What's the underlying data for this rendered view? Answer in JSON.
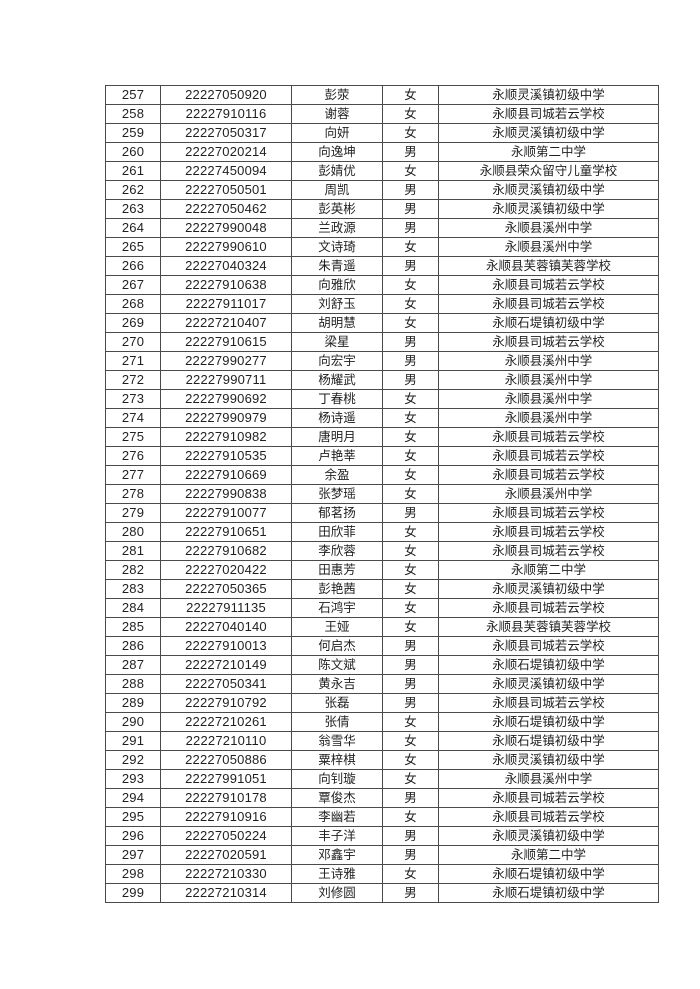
{
  "page": {
    "background": "#ffffff",
    "text_color": "#1f1f1f",
    "border_color": "#4a4a4a"
  },
  "table": {
    "columns": [
      {
        "key": "no",
        "cell_name": "cell-serial-number"
      },
      {
        "key": "exam_no",
        "cell_name": "cell-exam-number"
      },
      {
        "key": "name",
        "cell_name": "cell-student-name"
      },
      {
        "key": "gender",
        "cell_name": "cell-gender"
      },
      {
        "key": "school",
        "cell_name": "cell-school"
      }
    ],
    "rows": [
      {
        "no": "257",
        "exam_no": "22227050920",
        "name": "彭荥",
        "gender": "女",
        "school": "永顺灵溪镇初级中学"
      },
      {
        "no": "258",
        "exam_no": "22227910116",
        "name": "谢蓉",
        "gender": "女",
        "school": "永顺县司城若云学校"
      },
      {
        "no": "259",
        "exam_no": "22227050317",
        "name": "向妍",
        "gender": "女",
        "school": "永顺灵溪镇初级中学"
      },
      {
        "no": "260",
        "exam_no": "22227020214",
        "name": "向逸坤",
        "gender": "男",
        "school": "永顺第二中学"
      },
      {
        "no": "261",
        "exam_no": "22227450094",
        "name": "彭婧优",
        "gender": "女",
        "school": "永顺县荣众留守儿童学校"
      },
      {
        "no": "262",
        "exam_no": "22227050501",
        "name": "周凯",
        "gender": "男",
        "school": "永顺灵溪镇初级中学"
      },
      {
        "no": "263",
        "exam_no": "22227050462",
        "name": "彭英彬",
        "gender": "男",
        "school": "永顺灵溪镇初级中学"
      },
      {
        "no": "264",
        "exam_no": "22227990048",
        "name": "兰政源",
        "gender": "男",
        "school": "永顺县溪州中学"
      },
      {
        "no": "265",
        "exam_no": "22227990610",
        "name": "文诗琦",
        "gender": "女",
        "school": "永顺县溪州中学"
      },
      {
        "no": "266",
        "exam_no": "22227040324",
        "name": "朱青遥",
        "gender": "男",
        "school": "永顺县芙蓉镇芙蓉学校"
      },
      {
        "no": "267",
        "exam_no": "22227910638",
        "name": "向雅欣",
        "gender": "女",
        "school": "永顺县司城若云学校"
      },
      {
        "no": "268",
        "exam_no": "22227911017",
        "name": "刘舒玉",
        "gender": "女",
        "school": "永顺县司城若云学校"
      },
      {
        "no": "269",
        "exam_no": "22227210407",
        "name": "胡明慧",
        "gender": "女",
        "school": "永顺石堤镇初级中学"
      },
      {
        "no": "270",
        "exam_no": "22227910615",
        "name": "梁星",
        "gender": "男",
        "school": "永顺县司城若云学校"
      },
      {
        "no": "271",
        "exam_no": "22227990277",
        "name": "向宏宇",
        "gender": "男",
        "school": "永顺县溪州中学"
      },
      {
        "no": "272",
        "exam_no": "22227990711",
        "name": "杨耀武",
        "gender": "男",
        "school": "永顺县溪州中学"
      },
      {
        "no": "273",
        "exam_no": "22227990692",
        "name": "丁春桃",
        "gender": "女",
        "school": "永顺县溪州中学"
      },
      {
        "no": "274",
        "exam_no": "22227990979",
        "name": "杨诗遥",
        "gender": "女",
        "school": "永顺县溪州中学"
      },
      {
        "no": "275",
        "exam_no": "22227910982",
        "name": "唐明月",
        "gender": "女",
        "school": "永顺县司城若云学校"
      },
      {
        "no": "276",
        "exam_no": "22227910535",
        "name": "卢艳莘",
        "gender": "女",
        "school": "永顺县司城若云学校"
      },
      {
        "no": "277",
        "exam_no": "22227910669",
        "name": "余盈",
        "gender": "女",
        "school": "永顺县司城若云学校"
      },
      {
        "no": "278",
        "exam_no": "22227990838",
        "name": "张梦瑶",
        "gender": "女",
        "school": "永顺县溪州中学"
      },
      {
        "no": "279",
        "exam_no": "22227910077",
        "name": "郁茗扬",
        "gender": "男",
        "school": "永顺县司城若云学校"
      },
      {
        "no": "280",
        "exam_no": "22227910651",
        "name": "田欣菲",
        "gender": "女",
        "school": "永顺县司城若云学校"
      },
      {
        "no": "281",
        "exam_no": "22227910682",
        "name": "李欣蓉",
        "gender": "女",
        "school": "永顺县司城若云学校"
      },
      {
        "no": "282",
        "exam_no": "22227020422",
        "name": "田惠芳",
        "gender": "女",
        "school": "永顺第二中学"
      },
      {
        "no": "283",
        "exam_no": "22227050365",
        "name": "彭艳茜",
        "gender": "女",
        "school": "永顺灵溪镇初级中学"
      },
      {
        "no": "284",
        "exam_no": "22227911135",
        "name": "石鸿宇",
        "gender": "女",
        "school": "永顺县司城若云学校"
      },
      {
        "no": "285",
        "exam_no": "22227040140",
        "name": "王娅",
        "gender": "女",
        "school": "永顺县芙蓉镇芙蓉学校"
      },
      {
        "no": "286",
        "exam_no": "22227910013",
        "name": "何启杰",
        "gender": "男",
        "school": "永顺县司城若云学校"
      },
      {
        "no": "287",
        "exam_no": "22227210149",
        "name": "陈文斌",
        "gender": "男",
        "school": "永顺石堤镇初级中学"
      },
      {
        "no": "288",
        "exam_no": "22227050341",
        "name": "黄永吉",
        "gender": "男",
        "school": "永顺灵溪镇初级中学"
      },
      {
        "no": "289",
        "exam_no": "22227910792",
        "name": "张磊",
        "gender": "男",
        "school": "永顺县司城若云学校"
      },
      {
        "no": "290",
        "exam_no": "22227210261",
        "name": "张倩",
        "gender": "女",
        "school": "永顺石堤镇初级中学"
      },
      {
        "no": "291",
        "exam_no": "22227210110",
        "name": "翁雪华",
        "gender": "女",
        "school": "永顺石堤镇初级中学"
      },
      {
        "no": "292",
        "exam_no": "22227050886",
        "name": "粟梓棋",
        "gender": "女",
        "school": "永顺灵溪镇初级中学"
      },
      {
        "no": "293",
        "exam_no": "22227991051",
        "name": "向钊璇",
        "gender": "女",
        "school": "永顺县溪州中学"
      },
      {
        "no": "294",
        "exam_no": "22227910178",
        "name": "覃俊杰",
        "gender": "男",
        "school": "永顺县司城若云学校"
      },
      {
        "no": "295",
        "exam_no": "22227910916",
        "name": "李幽若",
        "gender": "女",
        "school": "永顺县司城若云学校"
      },
      {
        "no": "296",
        "exam_no": "22227050224",
        "name": "丰子洋",
        "gender": "男",
        "school": "永顺灵溪镇初级中学"
      },
      {
        "no": "297",
        "exam_no": "22227020591",
        "name": "邓鑫宇",
        "gender": "男",
        "school": "永顺第二中学"
      },
      {
        "no": "298",
        "exam_no": "22227210330",
        "name": "王诗雅",
        "gender": "女",
        "school": "永顺石堤镇初级中学"
      },
      {
        "no": "299",
        "exam_no": "22227210314",
        "name": "刘修圆",
        "gender": "男",
        "school": "永顺石堤镇初级中学"
      }
    ]
  }
}
